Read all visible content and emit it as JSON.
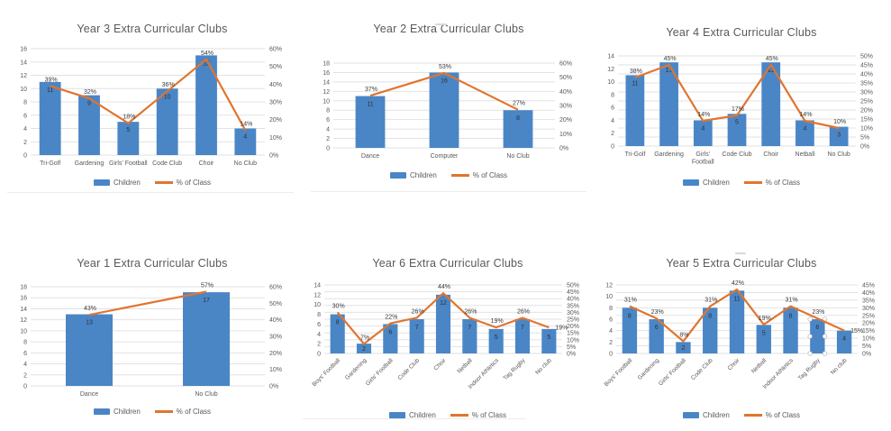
{
  "colors": {
    "bar_fill": "#4a86c6",
    "line_stroke": "#e0752f",
    "gridline": "#e2e2e2",
    "title_text": "#595959",
    "axis_text": "#595959",
    "data_label_text": "#3a3a3a"
  },
  "legend": {
    "children_label": "Children",
    "pct_label": "% of Class"
  },
  "chart_data": [
    {
      "type": "bar+line",
      "title": "Year 3 Extra Curricular Clubs",
      "categories": [
        "Tri-Golf",
        "Gardening",
        "Girls' Football",
        "Code Club",
        "Choir",
        "No Club"
      ],
      "series": [
        {
          "name": "Children",
          "type": "bar",
          "axis": "left",
          "values": [
            11,
            9,
            5,
            10,
            15,
            4
          ]
        },
        {
          "name": "% of Class",
          "type": "line",
          "axis": "right",
          "unit": "%",
          "values": [
            39,
            32,
            18,
            36,
            54,
            14
          ]
        }
      ],
      "left_axis": {
        "min": 0,
        "max": 16,
        "step": 2
      },
      "right_axis": {
        "min": 0,
        "max": 60,
        "step": 10,
        "unit": "%"
      },
      "rotate_labels": false,
      "gridlines": true,
      "legend_position": "bottom"
    },
    {
      "type": "bar+line",
      "title": "Year 2 Extra Curricular Clubs",
      "categories": [
        "Dance",
        "Computer",
        "No Club"
      ],
      "series": [
        {
          "name": "Children",
          "type": "bar",
          "axis": "left",
          "values": [
            11,
            16,
            8
          ]
        },
        {
          "name": "% of Class",
          "type": "line",
          "axis": "right",
          "unit": "%",
          "values": [
            37,
            53,
            27
          ]
        }
      ],
      "left_axis": {
        "min": 0,
        "max": 18,
        "step": 2
      },
      "right_axis": {
        "min": 0,
        "max": 60,
        "step": 10,
        "unit": "%"
      },
      "rotate_labels": false,
      "gridlines": true,
      "legend_position": "bottom"
    },
    {
      "type": "bar+line",
      "title": "Year 4 Extra Curricular Clubs",
      "categories": [
        "Tri-Golf",
        "Gardening",
        "Girls' Football",
        "Code Club",
        "Choir",
        "Netball",
        "No Club"
      ],
      "series": [
        {
          "name": "Children",
          "type": "bar",
          "axis": "left",
          "values": [
            11,
            13,
            4,
            5,
            13,
            4,
            3
          ]
        },
        {
          "name": "% of Class",
          "type": "line",
          "axis": "right",
          "unit": "%",
          "values": [
            38,
            45,
            14,
            17,
            45,
            14,
            10
          ]
        }
      ],
      "left_axis": {
        "min": 0,
        "max": 14,
        "step": 2
      },
      "right_axis": {
        "min": 0,
        "max": 50,
        "step": 5,
        "unit": "%"
      },
      "rotate_labels": false,
      "gridlines": true,
      "legend_position": "bottom"
    },
    {
      "type": "bar+line",
      "title": "Year 1 Extra Curricular Clubs",
      "categories": [
        "Dance",
        "No Club"
      ],
      "series": [
        {
          "name": "Children",
          "type": "bar",
          "axis": "left",
          "values": [
            13,
            17
          ]
        },
        {
          "name": "% of Class",
          "type": "line",
          "axis": "right",
          "unit": "%",
          "values": [
            43,
            57
          ]
        }
      ],
      "left_axis": {
        "min": 0,
        "max": 18,
        "step": 2
      },
      "right_axis": {
        "min": 0,
        "max": 60,
        "step": 10,
        "unit": "%"
      },
      "rotate_labels": false,
      "gridlines": true,
      "legend_position": "bottom"
    },
    {
      "type": "bar+line",
      "title": "Year 6 Extra Curricular Clubs",
      "categories": [
        "Boys' Football",
        "Gardening",
        "Girls' Football",
        "Code Club",
        "Choir",
        "Netball",
        "Indoor Athletics",
        "Tag Rugby",
        "No club"
      ],
      "series": [
        {
          "name": "Children",
          "type": "bar",
          "axis": "left",
          "values": [
            8,
            2,
            6,
            7,
            12,
            7,
            5,
            7,
            5
          ]
        },
        {
          "name": "% of Class",
          "type": "line",
          "axis": "right",
          "unit": "%",
          "values": [
            30,
            7,
            22,
            26,
            44,
            26,
            19,
            26,
            19
          ]
        }
      ],
      "left_axis": {
        "min": 0,
        "max": 14,
        "step": 2
      },
      "right_axis": {
        "min": 0,
        "max": 50,
        "step": 5,
        "unit": "%"
      },
      "rotate_labels": true,
      "gridlines": true,
      "legend_position": "bottom"
    },
    {
      "type": "bar+line",
      "title": "Year 5 Extra Curricular Clubs",
      "categories": [
        "Boys' Football",
        "Gardening",
        "Girls' Football",
        "Code Club",
        "Choir",
        "Netball",
        "Indoor Athletics",
        "Tag Rugby",
        "No club"
      ],
      "series": [
        {
          "name": "Children",
          "type": "bar",
          "axis": "left",
          "values": [
            8,
            6,
            2,
            8,
            11,
            5,
            8,
            6,
            4
          ]
        },
        {
          "name": "% of Class",
          "type": "line",
          "axis": "right",
          "unit": "%",
          "values": [
            31,
            23,
            8,
            31,
            42,
            19,
            31,
            23,
            15
          ]
        }
      ],
      "left_axis": {
        "min": 0,
        "max": 12,
        "step": 2
      },
      "right_axis": {
        "min": 0,
        "max": 45,
        "step": 5,
        "unit": "%"
      },
      "rotate_labels": true,
      "gridlines": true,
      "legend_position": "bottom",
      "selected_bar_index": 7
    }
  ]
}
